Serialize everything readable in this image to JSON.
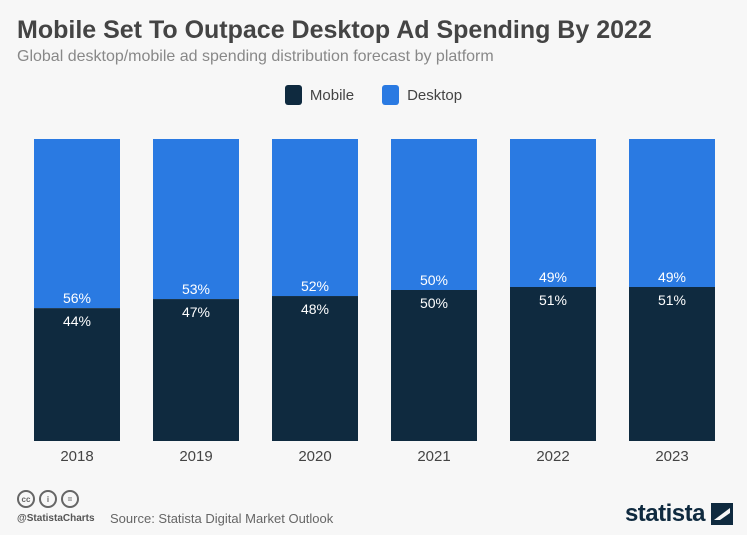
{
  "chart_data": {
    "type": "bar",
    "stacked": true,
    "title": "Mobile Set To Outpace Desktop Ad Spending By 2022",
    "subtitle": "Global desktop/mobile ad spending distribution forecast by platform",
    "categories": [
      "2018",
      "2019",
      "2020",
      "2021",
      "2022",
      "2023"
    ],
    "series": [
      {
        "name": "Mobile",
        "color": "#0f2a3f",
        "values": [
          44,
          47,
          48,
          50,
          51,
          51
        ]
      },
      {
        "name": "Desktop",
        "color": "#2a7ae2",
        "values": [
          56,
          53,
          52,
          50,
          49,
          49
        ]
      }
    ],
    "value_suffix": "%",
    "ylim": [
      0,
      100
    ],
    "grid": false,
    "legend_position": "top-center"
  },
  "footer": {
    "handle": "@StatistaCharts",
    "source": "Source: Statista Digital Market Outlook",
    "logo": "statista",
    "license_icons": [
      "cc-icon",
      "by-icon",
      "nd-icon"
    ]
  }
}
